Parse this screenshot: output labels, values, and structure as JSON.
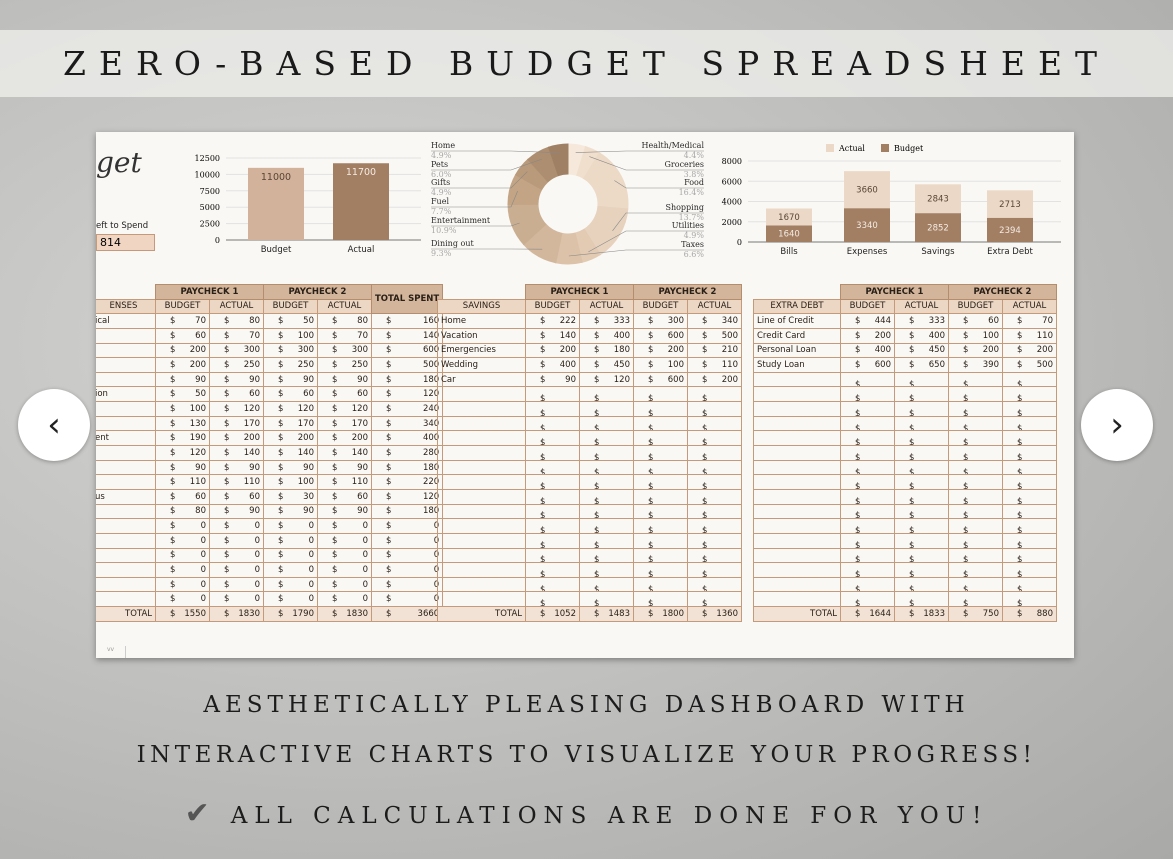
{
  "title": "ZERO-BASED BUDGET SPREADSHEET",
  "taglines": [
    "AESTHETICALLY PLEASING DASHBOARD WITH",
    "INTERACTIVE CHARTS TO VISUALIZE YOUR PROGRESS!",
    "ALL CALCULATIONS ARE DONE FOR YOU!"
  ],
  "nav": {
    "prev": "‹",
    "next": "›",
    "check": "✔"
  },
  "sheet": {
    "script_title": "get",
    "left_to_spend_label": "eft to Spend",
    "left_to_spend_value": "814"
  },
  "chart_data": [
    {
      "type": "bar",
      "categories": [
        "Budget",
        "Actual"
      ],
      "values": [
        11000,
        11700
      ],
      "ylim": [
        0,
        12500
      ],
      "yticks": [
        0,
        2500,
        5000,
        7500,
        10000,
        12500
      ],
      "colors": [
        "#d2b29a",
        "#a27e62"
      ]
    },
    {
      "type": "pie",
      "donut": true,
      "labels": [
        "Health/Medical",
        "Groceries",
        "Food",
        "Shopping",
        "Utilities",
        "Taxes",
        "Dining out",
        "Entertainment",
        "Fuel",
        "Gifts",
        "Pets",
        "Home"
      ],
      "pct_labels": [
        "4.4%",
        "3.8%",
        "16.4%",
        "13.7%",
        "4.9%",
        "6.6%",
        "9.3%",
        "10.9%",
        "7.7%",
        "4.9%",
        "6.0%",
        "4.9%"
      ],
      "values": [
        4.4,
        3.8,
        16.4,
        13.7,
        4.9,
        6.6,
        9.3,
        10.9,
        7.7,
        4.9,
        6.0,
        4.9
      ],
      "colors": [
        "#f6e9dc",
        "#f0dfcd",
        "#ecdac7",
        "#e6d2bd",
        "#e2cab3",
        "#dcc2a8",
        "#d2b79c",
        "#caae91",
        "#c3a485",
        "#b99a7b",
        "#ae8e70",
        "#a08065"
      ]
    },
    {
      "type": "bar",
      "stacked": true,
      "categories": [
        "Bills",
        "Expenses",
        "Savings",
        "Extra Debt"
      ],
      "legend": [
        "Actual",
        "Budget"
      ],
      "legend_position": "top",
      "series": [
        {
          "name": "Budget",
          "values": [
            1640,
            3340,
            2852,
            2394
          ],
          "color": "#a27e62"
        },
        {
          "name": "Actual",
          "values": [
            1670,
            3660,
            2843,
            2713
          ],
          "color": "#ecd8c6"
        }
      ],
      "ylim": [
        0,
        8000
      ],
      "yticks": [
        0,
        2000,
        4000,
        6000,
        8000
      ]
    }
  ],
  "tables": [
    {
      "name": "expenses",
      "header": "ENSES",
      "total_spent": "TOTAL SPENT",
      "paycheck1": "PAYCHECK 1",
      "paycheck2": "PAYCHECK 2",
      "budget": "BUDGET",
      "actual": "ACTUAL",
      "total_label": "TOTAL",
      "rows": [
        [
          "ical",
          70,
          80,
          50,
          80,
          160
        ],
        [
          "",
          60,
          70,
          100,
          70,
          140
        ],
        [
          "",
          200,
          300,
          300,
          300,
          600
        ],
        [
          "",
          200,
          250,
          250,
          250,
          500
        ],
        [
          "",
          90,
          90,
          90,
          90,
          180
        ],
        [
          "ion",
          50,
          60,
          60,
          60,
          120
        ],
        [
          "",
          100,
          120,
          120,
          120,
          240
        ],
        [
          "",
          130,
          170,
          170,
          170,
          340
        ],
        [
          "ent",
          190,
          200,
          200,
          200,
          400
        ],
        [
          "",
          120,
          140,
          140,
          140,
          280
        ],
        [
          "",
          90,
          90,
          90,
          90,
          180
        ],
        [
          "",
          110,
          110,
          100,
          110,
          220
        ],
        [
          "us",
          60,
          60,
          30,
          60,
          120
        ],
        [
          "",
          80,
          90,
          90,
          90,
          180
        ],
        [
          "",
          0,
          0,
          0,
          0,
          0
        ],
        [
          "",
          0,
          0,
          0,
          0,
          0
        ],
        [
          "",
          0,
          0,
          0,
          0,
          0
        ],
        [
          "",
          0,
          0,
          0,
          0,
          0
        ],
        [
          "",
          0,
          0,
          0,
          0,
          0
        ],
        [
          "",
          0,
          0,
          0,
          0,
          0
        ]
      ],
      "totals": [
        1550,
        1830,
        1790,
        1830,
        3660
      ]
    },
    {
      "name": "savings",
      "header": "SAVINGS",
      "paycheck1": "PAYCHECK 1",
      "paycheck2": "PAYCHECK 2",
      "budget": "BUDGET",
      "actual": "ACTUAL",
      "total_label": "TOTAL",
      "rows": [
        [
          "Home",
          222,
          333,
          300,
          340
        ],
        [
          "Vacation",
          140,
          400,
          600,
          500
        ],
        [
          "Emergencies",
          200,
          180,
          200,
          210
        ],
        [
          "Wedding",
          400,
          450,
          100,
          110
        ],
        [
          "Car",
          90,
          120,
          600,
          200
        ]
      ],
      "empty_rows": 15,
      "totals": [
        1052,
        1483,
        1800,
        1360
      ]
    },
    {
      "name": "extra-debt",
      "header": "EXTRA DEBT",
      "paycheck1": "PAYCHECK 1",
      "paycheck2": "PAYCHECK 2",
      "budget": "BUDGET",
      "actual": "ACTUAL",
      "total_label": "TOTAL",
      "rows": [
        [
          "Line of Credit",
          444,
          333,
          60,
          70
        ],
        [
          "Credit Card",
          200,
          400,
          100,
          110
        ],
        [
          "Personal Loan",
          400,
          450,
          200,
          200
        ],
        [
          "Study Loan",
          600,
          650,
          390,
          500
        ]
      ],
      "empty_rows": 16,
      "totals": [
        1644,
        1833,
        750,
        880
      ]
    }
  ],
  "currency": "$"
}
